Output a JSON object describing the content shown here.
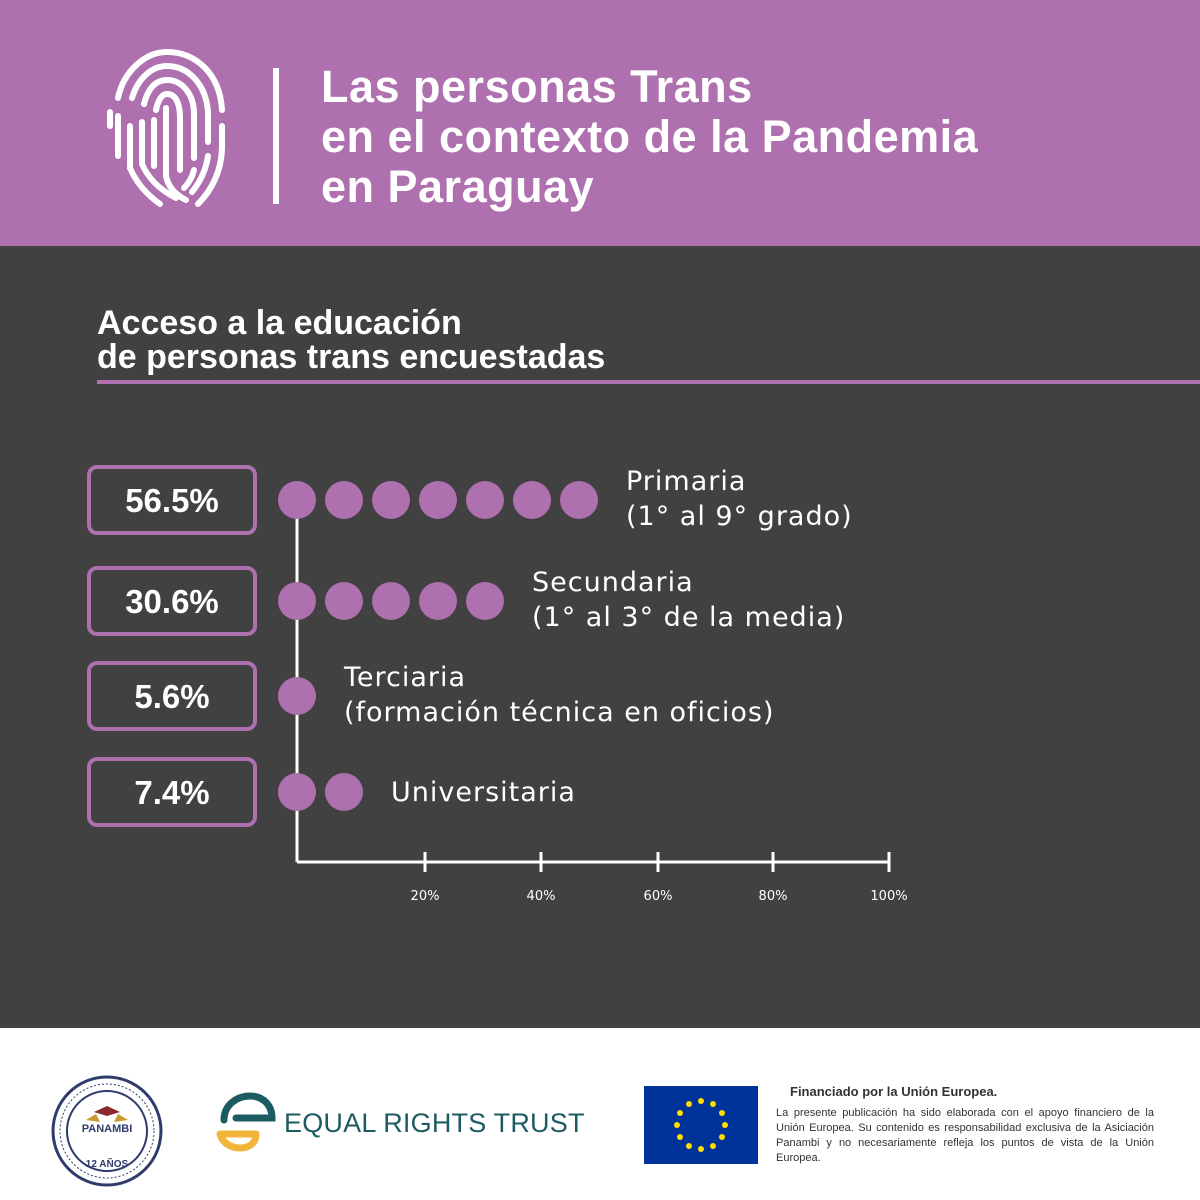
{
  "header": {
    "title_lines": [
      "Las personas Trans",
      "en el contexto de la Pandemia",
      "en Paraguay"
    ],
    "icon": "fingerprint-icon"
  },
  "colors": {
    "brand_purple": "#ae70ae",
    "panel_dark": "#414141",
    "text_white": "#ffffff",
    "ert_teal": "#1d5b63",
    "ert_yellow": "#f2b53a",
    "eu_blue": "#003399",
    "eu_yellow": "#ffdd00"
  },
  "subtitle_lines": [
    "Acceso a la educación",
    "de personas trans encuestadas"
  ],
  "chart_data": {
    "type": "bar",
    "title": "Acceso a la educación de personas trans encuestadas",
    "marker": "dot",
    "xlim": [
      0,
      100
    ],
    "x_ticks": [
      "20%",
      "40%",
      "60%",
      "80%",
      "100%"
    ],
    "categories": [
      {
        "value_label": "56.5%",
        "value": 56.5,
        "dots": 7,
        "label_lines": [
          "Primaria",
          "(1° al 9° grado)"
        ]
      },
      {
        "value_label": "30.6%",
        "value": 30.6,
        "dots": 5,
        "label_lines": [
          "Secundaria",
          "(1° al 3° de la media)"
        ]
      },
      {
        "value_label": "5.6%",
        "value": 5.6,
        "dots": 1,
        "label_lines": [
          "Terciaria",
          "(formación técnica en oficios)"
        ]
      },
      {
        "value_label": "7.4%",
        "value": 7.4,
        "dots": 2,
        "label_lines": [
          "Universitaria"
        ]
      }
    ]
  },
  "footer": {
    "panambi": {
      "name": "PANAMBI",
      "years": "12 AÑOS"
    },
    "ert": {
      "name": "EQUAL RIGHTS TRUST"
    },
    "eu": {
      "title": "Financiado por la Unión Europea.",
      "text": "La presente publicación ha sido elaborada con el apoyo financiero de la Unión Europea. Su contenido es responsabilidad exclusiva de la Asiciación Panambi y no necesariamente refleja los puntos de vista de la Unión Europea."
    }
  }
}
